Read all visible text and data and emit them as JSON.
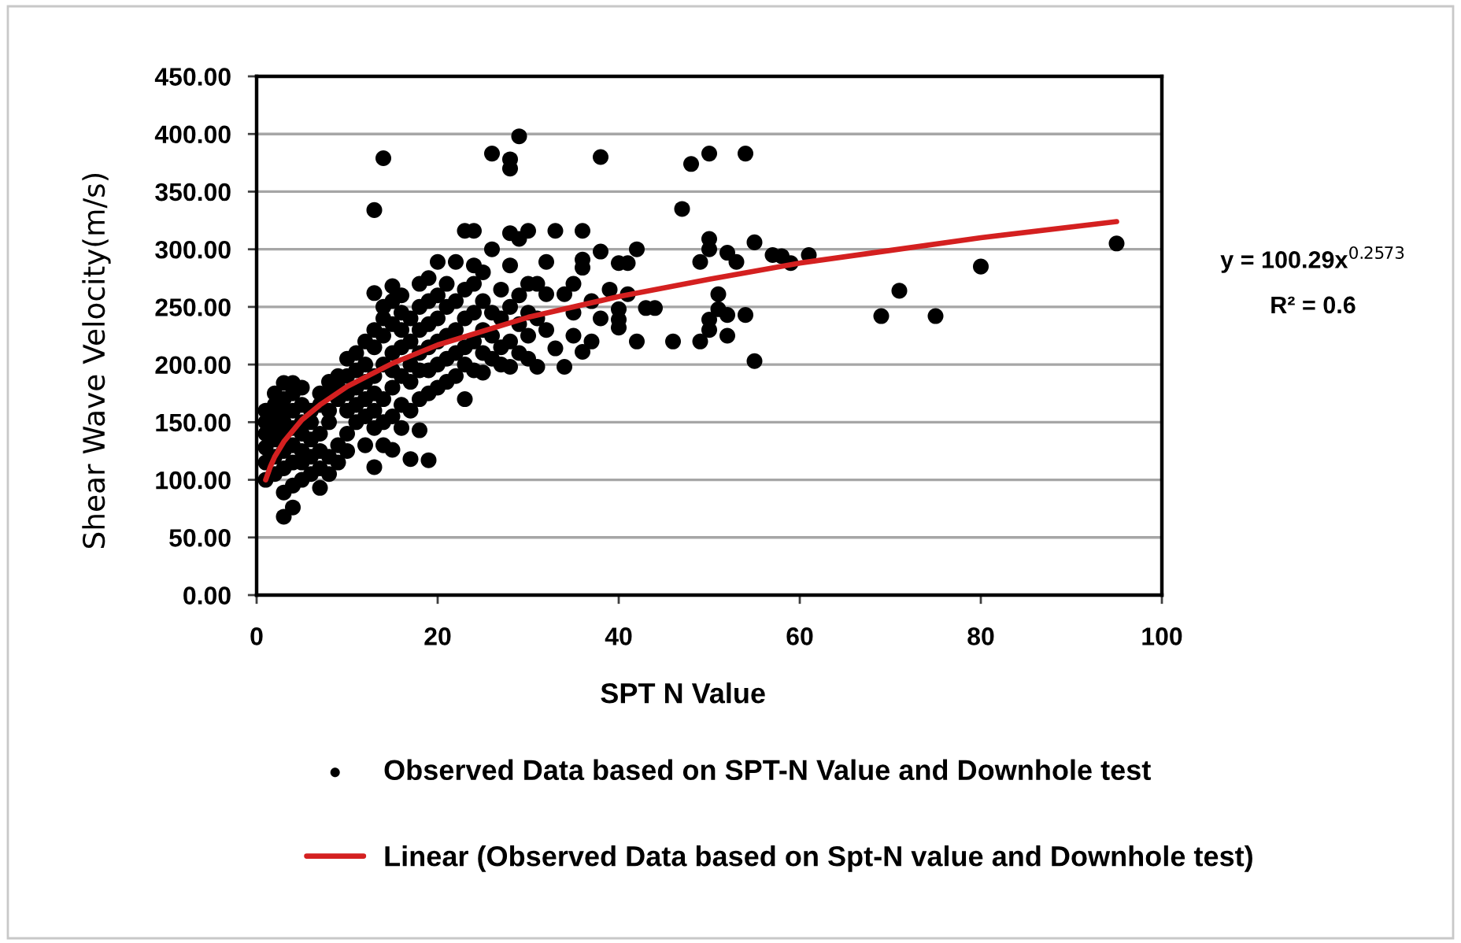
{
  "chart_data": {
    "type": "scatter",
    "xlabel": "SPT N Value",
    "ylabel": "Shear Wave Velocity(m/s)",
    "xlim": [
      0,
      100
    ],
    "xticks": [
      0,
      20,
      40,
      60,
      80,
      100
    ],
    "ylim": [
      0,
      450
    ],
    "yticks": [
      {
        "value": 0,
        "label": "0.00"
      },
      {
        "value": 50,
        "label": "50.00"
      },
      {
        "value": 100,
        "label": "100.00"
      },
      {
        "value": 150,
        "label": "150.00"
      },
      {
        "value": 200,
        "label": "200.00"
      },
      {
        "value": 250,
        "label": "250.00"
      },
      {
        "value": 300,
        "label": "300.00"
      },
      {
        "value": 350,
        "label": "350.00"
      },
      {
        "value": 400,
        "label": "400.00"
      },
      {
        "value": 450,
        "label": "450.00"
      }
    ],
    "grid": "y",
    "legend": "bottom",
    "annotations": [
      "y = 100.29x$^{0.2573}$",
      "R² = 0.6"
    ],
    "series": [
      {
        "name": "Observed Data based on SPT-N Value and Downhole test",
        "marker": "circle",
        "color": "#000000",
        "x": [
          1,
          1,
          1,
          1,
          1,
          1,
          2,
          2,
          2,
          2,
          2,
          2,
          2,
          3,
          3,
          3,
          3,
          3,
          3,
          3,
          3,
          3,
          4,
          4,
          4,
          4,
          4,
          4,
          4,
          4,
          5,
          5,
          5,
          5,
          5,
          5,
          5,
          6,
          6,
          6,
          6,
          6,
          7,
          7,
          7,
          7,
          7,
          7,
          8,
          8,
          8,
          8,
          8,
          8,
          9,
          9,
          9,
          9,
          9,
          10,
          10,
          10,
          10,
          10,
          10,
          11,
          11,
          11,
          11,
          11,
          12,
          12,
          12,
          12,
          12,
          12,
          13,
          13,
          13,
          13,
          13,
          13,
          13,
          13,
          13,
          14,
          14,
          14,
          14,
          14,
          14,
          14,
          14,
          15,
          15,
          15,
          15,
          15,
          15,
          15,
          15,
          16,
          16,
          16,
          16,
          16,
          16,
          16,
          17,
          17,
          17,
          17,
          17,
          17,
          18,
          18,
          18,
          18,
          18,
          18,
          18,
          19,
          19,
          19,
          19,
          19,
          19,
          19,
          20,
          20,
          20,
          20,
          20,
          20,
          21,
          21,
          21,
          21,
          21,
          22,
          22,
          22,
          22,
          22,
          23,
          23,
          23,
          23,
          23,
          23,
          24,
          24,
          24,
          24,
          24,
          24,
          25,
          25,
          25,
          25,
          25,
          26,
          26,
          26,
          26,
          26,
          27,
          27,
          27,
          27,
          28,
          28,
          28,
          28,
          28,
          28,
          28,
          29,
          29,
          29,
          29,
          29,
          30,
          30,
          30,
          30,
          30,
          31,
          31,
          31,
          32,
          32,
          32,
          33,
          33,
          34,
          34,
          35,
          35,
          35,
          36,
          36,
          36,
          36,
          37,
          37,
          38,
          38,
          38,
          39,
          40,
          40,
          40,
          40,
          41,
          41,
          42,
          42,
          43,
          44,
          46,
          47,
          48,
          49,
          49,
          50,
          50,
          50,
          50,
          50,
          51,
          51,
          52,
          52,
          52,
          53,
          54,
          54,
          55,
          55,
          57,
          58,
          59,
          61,
          69,
          71,
          75,
          80,
          95
        ],
        "values": [
          100,
          115,
          128,
          140,
          150,
          160,
          105,
          120,
          135,
          145,
          155,
          165,
          175,
          68,
          89,
          110,
          125,
          140,
          150,
          160,
          170,
          184,
          76,
          95,
          115,
          130,
          145,
          160,
          175,
          184,
          100,
          115,
          125,
          140,
          150,
          165,
          180,
          105,
          120,
          135,
          150,
          160,
          93,
          110,
          125,
          140,
          165,
          175,
          105,
          120,
          150,
          160,
          175,
          185,
          115,
          130,
          170,
          180,
          190,
          125,
          140,
          160,
          175,
          190,
          205,
          150,
          165,
          180,
          195,
          210,
          130,
          155,
          170,
          185,
          200,
          220,
          111,
          145,
          160,
          175,
          190,
          215,
          230,
          262,
          334,
          130,
          150,
          170,
          200,
          225,
          240,
          250,
          379,
          126,
          155,
          180,
          195,
          210,
          235,
          255,
          268,
          145,
          165,
          190,
          215,
          230,
          245,
          260,
          118,
          160,
          185,
          200,
          220,
          240,
          143,
          170,
          195,
          210,
          230,
          250,
          270,
          117,
          175,
          195,
          215,
          235,
          255,
          275,
          180,
          200,
          220,
          240,
          260,
          289,
          185,
          205,
          225,
          250,
          270,
          190,
          210,
          230,
          255,
          289,
          170,
          200,
          215,
          240,
          265,
          316,
          195,
          220,
          245,
          270,
          286,
          316,
          193,
          210,
          230,
          255,
          280,
          205,
          225,
          245,
          300,
          383,
          200,
          215,
          240,
          265,
          198,
          220,
          250,
          286,
          314,
          370,
          378,
          210,
          235,
          260,
          309,
          398,
          205,
          225,
          245,
          270,
          316,
          198,
          240,
          270,
          289,
          230,
          261,
          316,
          214,
          261,
          198,
          270,
          225,
          245,
          316,
          291,
          284,
          211,
          220,
          255,
          380,
          298,
          240,
          265,
          288,
          248,
          239,
          232,
          288,
          261,
          300,
          220,
          249,
          249,
          220,
          335,
          374,
          289,
          220,
          383,
          309,
          300,
          230,
          239,
          261,
          248,
          243,
          225,
          297,
          289,
          383,
          243,
          306,
          203,
          295,
          294,
          288,
          295,
          242,
          264,
          242,
          285,
          305
        ]
      },
      {
        "name": "Linear (Observed Data based on Spt-N value and Downhole test)",
        "type": "line",
        "color": "#d42020",
        "x": [
          1,
          1.5,
          2,
          3,
          5,
          7,
          10,
          15,
          20,
          30,
          40,
          50,
          60,
          70,
          80,
          95
        ],
        "values": [
          100,
          111,
          120,
          133,
          152,
          165,
          181,
          201,
          217,
          241,
          259,
          274,
          288,
          299,
          310,
          324
        ]
      }
    ]
  }
}
